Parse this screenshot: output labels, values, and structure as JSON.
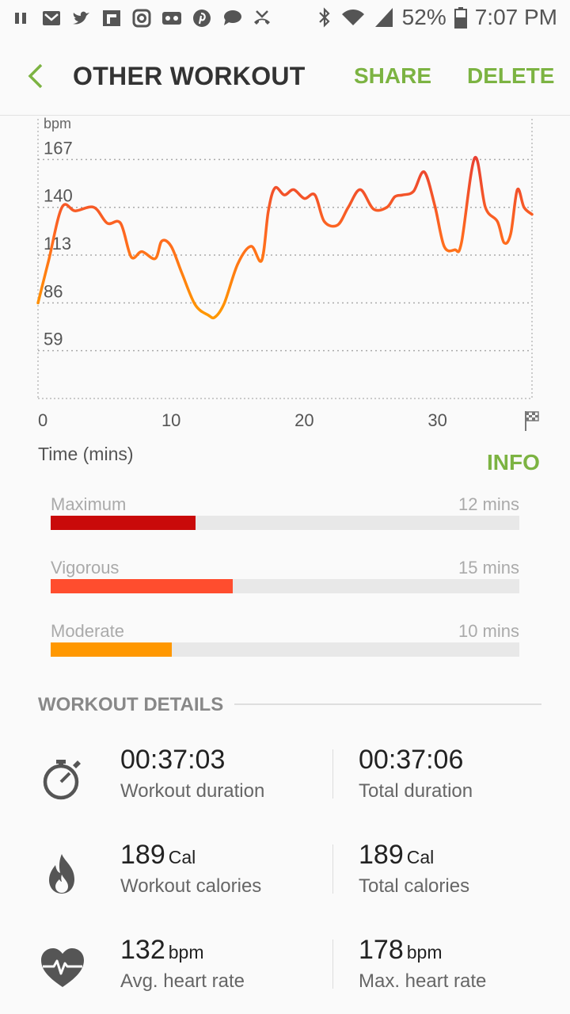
{
  "status_bar": {
    "battery": "52%",
    "time": "7:07 PM",
    "icons": [
      "pause-icon",
      "gmail-icon",
      "twitter-icon",
      "flipboard-icon",
      "instagram-icon",
      "voicemail-icon",
      "pinterest-icon",
      "chat-icon",
      "missed-call-icon",
      "bluetooth-icon",
      "wifi-icon",
      "signal-icon",
      "battery-icon"
    ]
  },
  "header": {
    "title": "OTHER WORKOUT",
    "share_label": "SHARE",
    "delete_label": "DELETE"
  },
  "chart_data": {
    "type": "line",
    "ylabel": "bpm",
    "xlabel": "Time (mins)",
    "y_ticks": [
      59,
      86,
      113,
      140,
      167
    ],
    "x_ticks": [
      "0",
      "10",
      "20",
      "30"
    ],
    "xlim": [
      0,
      37.1
    ],
    "ylim": [
      32,
      190
    ],
    "grid": true,
    "end_marker": "finish-flag",
    "colors": {
      "low": "#ff9800",
      "high": "#e53935"
    },
    "series": [
      {
        "x": [
          0,
          0.8,
          1.8,
          2.8,
          4.2,
          5.2,
          6.2,
          7,
          7.8,
          8.8,
          9.3,
          10,
          10.8,
          11.8,
          12.8,
          13.3,
          14,
          15,
          16,
          16.8,
          17.3,
          17.8,
          18.5,
          19.2,
          20.0,
          20.8,
          21.5,
          22.5,
          23.3,
          24.2,
          25.2,
          26.2,
          26.8,
          27.4,
          28.2,
          29.0,
          29.8,
          30.5,
          31.3,
          31.8,
          32.8,
          33.6,
          34.5,
          35.0,
          35.5,
          36.0,
          36.5,
          37.1
        ],
        "y": [
          86,
          110,
          140,
          138,
          140,
          131,
          131,
          112,
          115,
          111,
          121,
          118,
          103,
          85,
          79,
          78,
          86,
          108,
          118,
          110,
          138,
          151,
          147,
          150,
          145,
          147,
          132,
          130,
          140,
          150,
          139,
          140,
          146,
          147,
          149,
          160,
          141,
          118,
          116,
          120,
          168,
          140,
          132,
          120,
          125,
          150,
          140,
          136
        ]
      }
    ]
  },
  "info_label": "INFO",
  "zones": [
    {
      "name": "Maximum",
      "mins": "12 mins",
      "fraction": 0.309,
      "color": "#c90a0a"
    },
    {
      "name": "Vigorous",
      "mins": "15 mins",
      "fraction": 0.389,
      "color": "#ff4d2e"
    },
    {
      "name": "Moderate",
      "mins": "10 mins",
      "fraction": 0.258,
      "color": "#ff9800"
    }
  ],
  "details": {
    "title": "WORKOUT DETAILS",
    "rows": [
      {
        "icon": "stopwatch-icon",
        "left": {
          "value": "00:37:03",
          "unit": "",
          "label": "Workout duration"
        },
        "right": {
          "value": "00:37:06",
          "unit": "",
          "label": "Total duration"
        }
      },
      {
        "icon": "flame-icon",
        "left": {
          "value": "189",
          "unit": "Cal",
          "label": "Workout calories"
        },
        "right": {
          "value": "189",
          "unit": "Cal",
          "label": "Total calories"
        }
      },
      {
        "icon": "heart-rate-icon",
        "left": {
          "value": "132",
          "unit": "bpm",
          "label": "Avg. heart rate"
        },
        "right": {
          "value": "178",
          "unit": "bpm",
          "label": "Max. heart rate"
        }
      }
    ]
  }
}
